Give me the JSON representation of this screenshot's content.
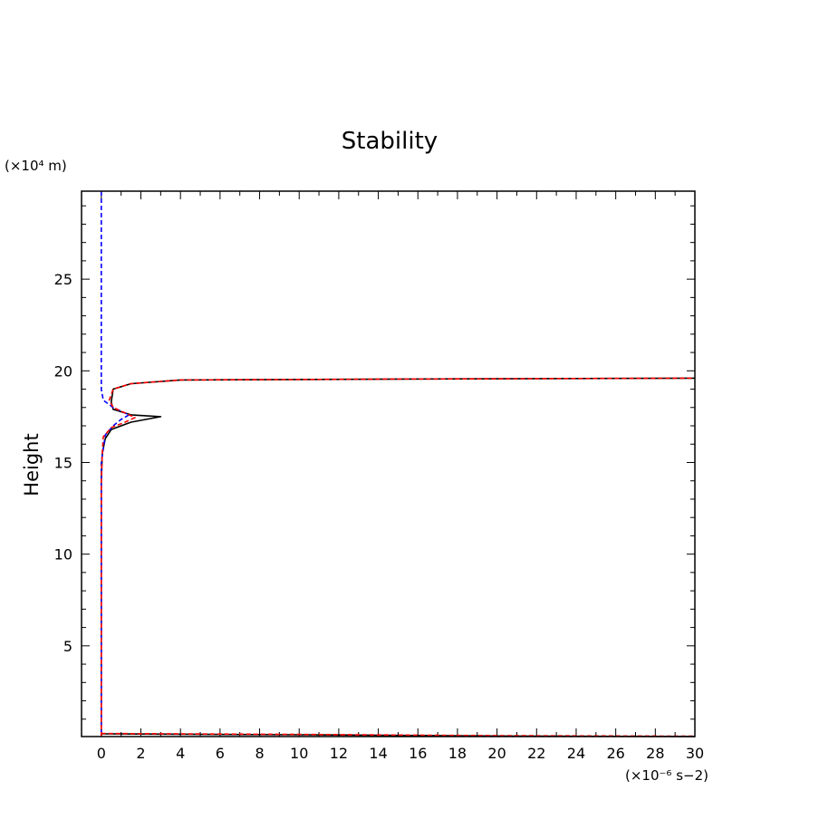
{
  "chart_data": {
    "type": "line",
    "title": "Stability",
    "ylabel": "Height",
    "y_unit_label": "(×10⁴ m)",
    "x_unit_label": "(×10⁻⁶ s−2)",
    "xlim": [
      -1,
      30
    ],
    "ylim": [
      0.05,
      29.8
    ],
    "x_ticks": [
      0,
      2,
      4,
      6,
      8,
      10,
      12,
      14,
      16,
      18,
      20,
      22,
      24,
      26,
      28,
      30
    ],
    "y_ticks": [
      5,
      10,
      15,
      20,
      25
    ],
    "series": [
      {
        "color": "#000000",
        "dash": "solid",
        "points": [
          [
            0,
            0.05
          ],
          [
            0,
            14
          ],
          [
            0.05,
            15.5
          ],
          [
            0.2,
            16.3
          ],
          [
            0.5,
            16.8
          ],
          [
            1.5,
            17.2
          ],
          [
            3.0,
            17.5
          ],
          [
            1.5,
            17.6
          ],
          [
            0.6,
            17.9
          ],
          [
            0.5,
            18.3
          ],
          [
            0.6,
            19.0
          ],
          [
            1.5,
            19.3
          ],
          [
            4,
            19.5
          ],
          [
            15,
            19.55
          ],
          [
            30,
            19.6
          ]
        ]
      },
      {
        "color": "#0000ff",
        "dash": "dashed",
        "points": [
          [
            0,
            29.8
          ],
          [
            0,
            19.0
          ],
          [
            0.1,
            18.4
          ],
          [
            0.6,
            18.0
          ],
          [
            1.4,
            17.6
          ],
          [
            1.0,
            17.35
          ],
          [
            0.6,
            17.0
          ],
          [
            0.2,
            16.5
          ],
          [
            0,
            15.0
          ],
          [
            0,
            0.05
          ]
        ]
      },
      {
        "color": "#ff0000",
        "dash": "dashed",
        "points": [
          [
            0,
            0.05
          ],
          [
            0,
            14
          ],
          [
            0.05,
            15.5
          ],
          [
            0.1,
            16.4
          ],
          [
            0.5,
            16.9
          ],
          [
            1.2,
            17.2
          ],
          [
            1.7,
            17.45
          ],
          [
            1.2,
            17.7
          ],
          [
            0.6,
            18.0
          ],
          [
            0.4,
            18.4
          ],
          [
            0.6,
            19.0
          ],
          [
            1.5,
            19.3
          ],
          [
            4,
            19.5
          ],
          [
            15,
            19.55
          ],
          [
            30,
            19.6
          ]
        ]
      },
      {
        "color": "#000000",
        "dash": "solid",
        "points": [
          [
            0,
            0.2
          ],
          [
            10,
            0.15
          ],
          [
            20,
            0.08
          ],
          [
            30,
            0.05
          ]
        ]
      },
      {
        "color": "#ff0000",
        "dash": "dashed",
        "points": [
          [
            0,
            0.22
          ],
          [
            10,
            0.17
          ],
          [
            20,
            0.1
          ],
          [
            30,
            0.07
          ]
        ]
      }
    ],
    "grid": false
  }
}
